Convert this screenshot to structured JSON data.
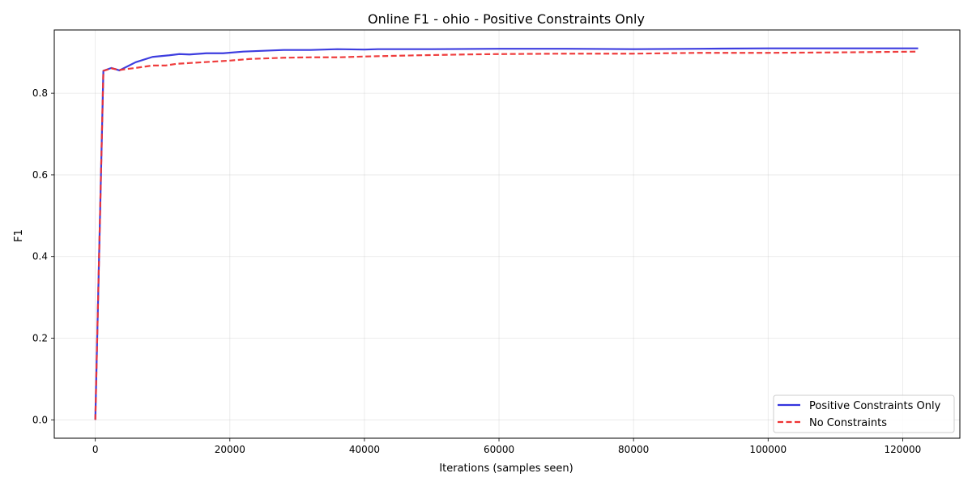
{
  "chart_data": {
    "type": "line",
    "title": "Online F1 - ohio - Positive Constraints Only",
    "xlabel": "Iterations (samples seen)",
    "ylabel": "F1",
    "xlim": [
      -6100,
      128500
    ],
    "ylim": [
      -0.045,
      0.955
    ],
    "xticks": [
      0,
      20000,
      40000,
      60000,
      80000,
      100000,
      120000
    ],
    "xtick_labels": [
      "0",
      "20000",
      "40000",
      "60000",
      "80000",
      "100000",
      "120000"
    ],
    "yticks": [
      0.0,
      0.2,
      0.4,
      0.6,
      0.8
    ],
    "ytick_labels": [
      "0.0",
      "0.2",
      "0.4",
      "0.6",
      "0.8"
    ],
    "grid": true,
    "legend_position": "lower-right",
    "series": [
      {
        "name": "Positive Constraints Only",
        "color": "#3333dd",
        "style": "solid",
        "x": [
          0,
          1200,
          2400,
          3600,
          6000,
          8500,
          11000,
          12500,
          14000,
          16500,
          19000,
          22000,
          25000,
          28000,
          32000,
          36000,
          40000,
          42000,
          50000,
          60000,
          70000,
          80000,
          90000,
          100000,
          110000,
          122300
        ],
        "y": [
          0.0,
          0.855,
          0.862,
          0.856,
          0.876,
          0.889,
          0.893,
          0.896,
          0.895,
          0.898,
          0.898,
          0.902,
          0.904,
          0.906,
          0.906,
          0.908,
          0.907,
          0.908,
          0.908,
          0.909,
          0.909,
          0.908,
          0.909,
          0.91,
          0.91,
          0.91
        ]
      },
      {
        "name": "No Constraints",
        "color": "#ee3333",
        "style": "dashed",
        "x": [
          0,
          1200,
          2400,
          3600,
          6000,
          8500,
          10500,
          12000,
          14000,
          17000,
          20000,
          23000,
          28000,
          32000,
          36000,
          40000,
          48000,
          55000,
          60000,
          70000,
          80000,
          90000,
          100000,
          110000,
          122300
        ],
        "y": [
          0.0,
          0.855,
          0.861,
          0.857,
          0.862,
          0.868,
          0.868,
          0.872,
          0.874,
          0.877,
          0.88,
          0.884,
          0.887,
          0.888,
          0.888,
          0.89,
          0.893,
          0.895,
          0.896,
          0.897,
          0.897,
          0.899,
          0.899,
          0.9,
          0.902
        ]
      }
    ]
  }
}
